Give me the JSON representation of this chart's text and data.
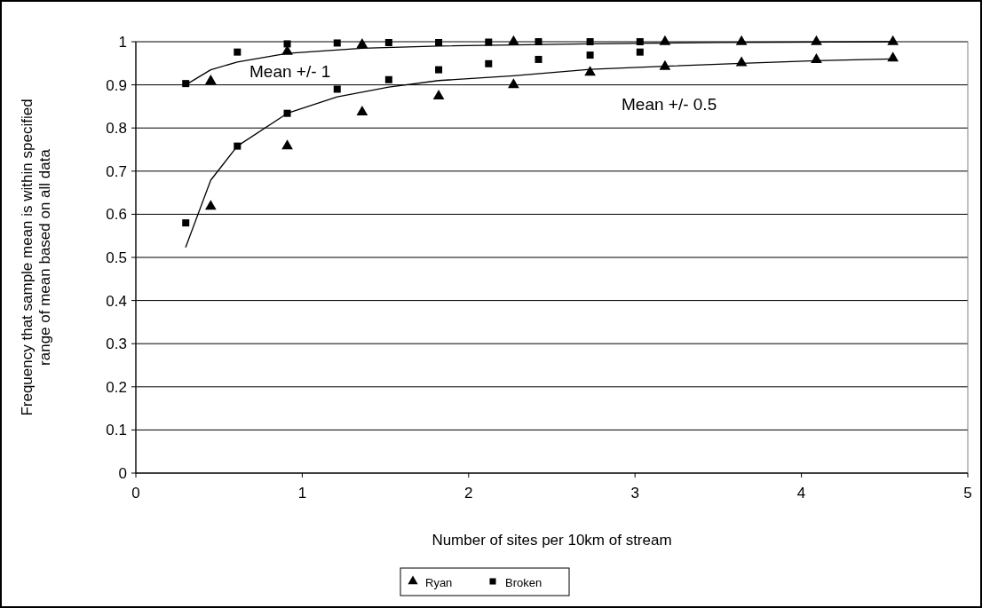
{
  "chart_data": {
    "type": "scatter",
    "xlabel": "Number of sites per 10km of stream",
    "ylabel": "Frequency that sample mean is within specified\nrange of mean based on all data",
    "xlim": [
      0,
      5
    ],
    "xticks": [
      0,
      1,
      2,
      3,
      4,
      5
    ],
    "ylim": [
      0,
      1
    ],
    "yticks": [
      0,
      0.1,
      0.2,
      0.3,
      0.4,
      0.5,
      0.6,
      0.7,
      0.8,
      0.9,
      1
    ],
    "grid": "y",
    "legend": "bottom",
    "annotations": [
      "Mean +/- 1",
      "Mean +/- 0.5"
    ],
    "series": [
      {
        "name": "Ryan",
        "color": "#000000",
        "marker": "triangle",
        "x": [
          0.45,
          0.91,
          1.36,
          2.27,
          3.18,
          3.64,
          4.09,
          4.55,
          0.45,
          0.91,
          1.36,
          1.82,
          2.27,
          2.73,
          3.18,
          3.64,
          4.09,
          4.55
        ],
        "values": [
          0.909,
          0.977,
          0.993,
          1.0,
          1.0,
          1.0,
          1.0,
          1.0,
          0.618,
          0.758,
          0.837,
          0.874,
          0.9,
          0.929,
          0.942,
          0.951,
          0.958,
          0.962
        ]
      },
      {
        "name": "Broken",
        "color": "#000000",
        "marker": "square",
        "x": [
          0.3,
          0.61,
          0.91,
          1.21,
          1.52,
          1.82,
          2.12,
          2.42,
          2.73,
          3.03,
          0.3,
          0.61,
          0.91,
          1.21,
          1.52,
          1.82,
          2.12,
          2.42,
          2.73,
          3.03
        ],
        "values": [
          0.903,
          0.976,
          0.995,
          0.997,
          0.998,
          0.998,
          0.999,
          1.0,
          1.0,
          1.0,
          0.58,
          0.758,
          0.834,
          0.89,
          0.912,
          0.935,
          0.949,
          0.959,
          0.969,
          0.976
        ]
      },
      {
        "type": "line",
        "color": "#000000",
        "marker": "none",
        "line_style": "solid",
        "x": [
          0.3,
          0.45,
          0.61,
          0.91,
          1.36,
          1.82,
          2.73,
          3.5,
          4.55
        ],
        "values": [
          0.9,
          0.935,
          0.953,
          0.973,
          0.985,
          0.99,
          0.995,
          0.998,
          1.0
        ]
      },
      {
        "type": "line",
        "color": "#000000",
        "marker": "none",
        "line_style": "solid",
        "x": [
          0.3,
          0.45,
          0.61,
          0.91,
          1.21,
          1.52,
          1.82,
          2.27,
          2.73,
          3.18,
          3.64,
          4.09,
          4.55
        ],
        "values": [
          0.524,
          0.679,
          0.758,
          0.834,
          0.872,
          0.895,
          0.91,
          0.921,
          0.936,
          0.943,
          0.95,
          0.956,
          0.96
        ]
      }
    ]
  }
}
